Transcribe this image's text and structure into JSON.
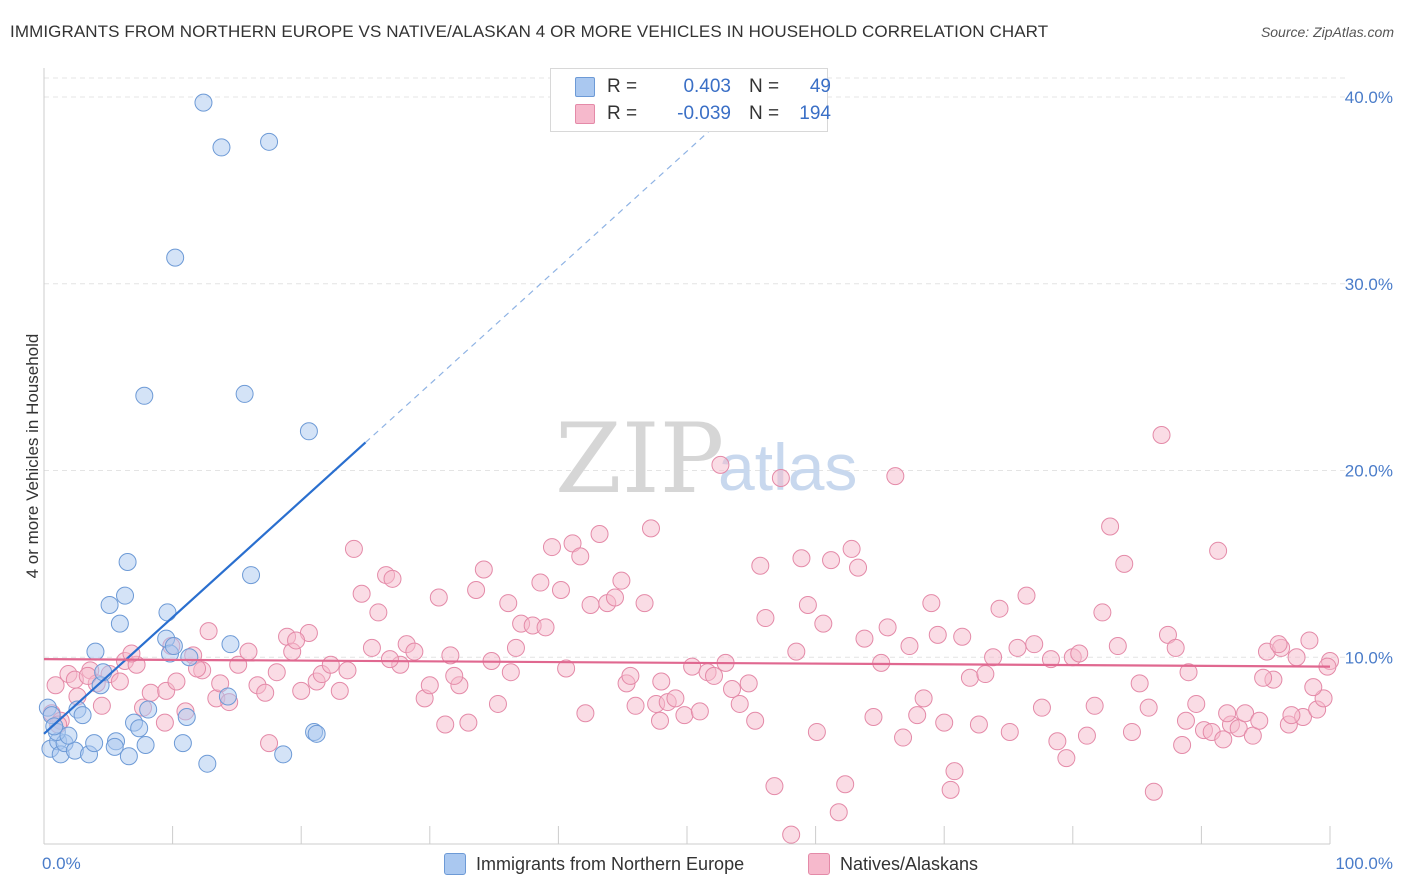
{
  "header": {
    "title": "IMMIGRANTS FROM NORTHERN EUROPE VS NATIVE/ALASKAN 4 OR MORE VEHICLES IN HOUSEHOLD CORRELATION CHART",
    "source": "Source: ZipAtlas.com"
  },
  "legend": {
    "blue": {
      "r_label": "R =",
      "r_value": "0.403",
      "n_label": "N =",
      "n_value": "49"
    },
    "pink": {
      "r_label": "R =",
      "r_value": "-0.039",
      "n_label": "N =",
      "n_value": "194"
    }
  },
  "watermark": {
    "zip": "ZIP",
    "atlas": "atlas"
  },
  "colors": {
    "blue_fill": "#aac8f0",
    "blue_stroke": "#6d9ad6",
    "blue_line": "#2a6fcf",
    "pink_fill": "#f6b9cc",
    "pink_stroke": "#e48aa8",
    "pink_line": "#e06890",
    "tick_text": "#4a7cc9"
  },
  "chart_data": {
    "type": "scatter",
    "title": "IMMIGRANTS FROM NORTHERN EUROPE VS NATIVE/ALASKAN 4 OR MORE VEHICLES IN HOUSEHOLD CORRELATION CHART",
    "xlabel": "",
    "ylabel": "4 or more Vehicles in Household",
    "xlim": [
      0,
      100
    ],
    "ylim": [
      0,
      40
    ],
    "x_tick_labels": [
      "0.0%",
      "100.0%"
    ],
    "y_ticks": [
      10,
      20,
      30,
      40
    ],
    "y_tick_labels": [
      "10.0%",
      "20.0%",
      "30.0%",
      "40.0%"
    ],
    "series": [
      {
        "name": "Immigrants from Northern Europe",
        "color": "blue",
        "trend": {
          "x0": 0.0,
          "y0": 5.9,
          "x1": 25.0,
          "y1": 21.5,
          "dash_to_x": 55.0
        },
        "points": [
          [
            0.3,
            7.3
          ],
          [
            0.5,
            5.1
          ],
          [
            0.6,
            6.9
          ],
          [
            1.1,
            5.5
          ],
          [
            1.3,
            4.8
          ],
          [
            1.6,
            5.4
          ],
          [
            2.4,
            5.0
          ],
          [
            2.6,
            7.2
          ],
          [
            3.0,
            6.9
          ],
          [
            3.5,
            4.8
          ],
          [
            4.0,
            10.3
          ],
          [
            4.4,
            8.5
          ],
          [
            4.6,
            9.2
          ],
          [
            5.1,
            12.8
          ],
          [
            5.6,
            5.5
          ],
          [
            5.9,
            11.8
          ],
          [
            6.3,
            13.3
          ],
          [
            6.5,
            15.1
          ],
          [
            6.6,
            4.7
          ],
          [
            7.0,
            6.5
          ],
          [
            7.4,
            6.2
          ],
          [
            7.8,
            24.0
          ],
          [
            7.9,
            5.3
          ],
          [
            8.1,
            7.2
          ],
          [
            9.5,
            11.0
          ],
          [
            9.6,
            12.4
          ],
          [
            9.8,
            10.2
          ],
          [
            10.1,
            10.6
          ],
          [
            10.2,
            31.4
          ],
          [
            10.8,
            5.4
          ],
          [
            11.1,
            6.8
          ],
          [
            11.3,
            10.0
          ],
          [
            12.4,
            39.7
          ],
          [
            12.7,
            4.3
          ],
          [
            13.8,
            37.3
          ],
          [
            14.3,
            7.9
          ],
          [
            14.5,
            10.7
          ],
          [
            15.6,
            24.1
          ],
          [
            16.1,
            14.4
          ],
          [
            17.5,
            37.6
          ],
          [
            18.6,
            4.8
          ],
          [
            20.6,
            22.1
          ],
          [
            21.0,
            6.0
          ],
          [
            21.2,
            5.9
          ],
          [
            1.0,
            6.0
          ],
          [
            1.9,
            5.8
          ],
          [
            0.8,
            6.3
          ],
          [
            3.9,
            5.4
          ],
          [
            5.5,
            5.2
          ]
        ]
      },
      {
        "name": "Natives/Alaskans",
        "color": "pink",
        "trend": {
          "x0": 0.0,
          "y0": 9.9,
          "x1": 100.0,
          "y1": 9.5
        },
        "points": [
          [
            0.6,
            7.0
          ],
          [
            0.9,
            8.5
          ],
          [
            1.3,
            6.6
          ],
          [
            1.9,
            9.1
          ],
          [
            2.4,
            8.8
          ],
          [
            2.6,
            7.9
          ],
          [
            3.6,
            9.3
          ],
          [
            4.1,
            8.6
          ],
          [
            4.5,
            7.4
          ],
          [
            5.1,
            9.1
          ],
          [
            5.9,
            8.7
          ],
          [
            6.3,
            9.8
          ],
          [
            7.2,
            9.6
          ],
          [
            7.7,
            7.3
          ],
          [
            8.3,
            8.1
          ],
          [
            9.4,
            6.5
          ],
          [
            9.5,
            8.2
          ],
          [
            9.9,
            10.6
          ],
          [
            10.3,
            8.7
          ],
          [
            11.0,
            7.1
          ],
          [
            11.6,
            10.1
          ],
          [
            12.3,
            9.3
          ],
          [
            12.8,
            11.4
          ],
          [
            13.4,
            7.8
          ],
          [
            13.7,
            8.6
          ],
          [
            14.4,
            7.6
          ],
          [
            15.1,
            9.6
          ],
          [
            15.9,
            10.3
          ],
          [
            16.6,
            8.5
          ],
          [
            17.2,
            8.1
          ],
          [
            17.5,
            5.4
          ],
          [
            18.1,
            9.2
          ],
          [
            18.9,
            11.1
          ],
          [
            19.3,
            10.3
          ],
          [
            20.0,
            8.2
          ],
          [
            20.6,
            11.3
          ],
          [
            21.2,
            8.7
          ],
          [
            21.6,
            9.1
          ],
          [
            22.3,
            9.6
          ],
          [
            23.0,
            8.2
          ],
          [
            23.6,
            9.3
          ],
          [
            24.1,
            15.8
          ],
          [
            24.7,
            13.4
          ],
          [
            25.5,
            10.5
          ],
          [
            26.0,
            12.4
          ],
          [
            26.6,
            14.4
          ],
          [
            27.1,
            14.2
          ],
          [
            27.7,
            9.6
          ],
          [
            28.2,
            10.7
          ],
          [
            28.8,
            10.3
          ],
          [
            29.6,
            7.8
          ],
          [
            30.0,
            8.5
          ],
          [
            30.7,
            13.2
          ],
          [
            31.2,
            6.4
          ],
          [
            31.6,
            10.1
          ],
          [
            32.3,
            8.5
          ],
          [
            33.0,
            6.5
          ],
          [
            33.6,
            13.6
          ],
          [
            34.2,
            14.7
          ],
          [
            34.8,
            9.8
          ],
          [
            35.3,
            7.5
          ],
          [
            36.1,
            12.9
          ],
          [
            36.7,
            10.5
          ],
          [
            37.1,
            11.8
          ],
          [
            38.0,
            11.7
          ],
          [
            38.6,
            14.0
          ],
          [
            39.0,
            11.6
          ],
          [
            39.5,
            15.9
          ],
          [
            40.2,
            13.6
          ],
          [
            40.6,
            9.4
          ],
          [
            41.1,
            16.1
          ],
          [
            41.7,
            15.4
          ],
          [
            42.5,
            12.8
          ],
          [
            43.2,
            16.6
          ],
          [
            43.8,
            12.9
          ],
          [
            44.4,
            13.2
          ],
          [
            44.9,
            14.1
          ],
          [
            45.3,
            8.6
          ],
          [
            45.6,
            9.0
          ],
          [
            46.0,
            7.4
          ],
          [
            46.7,
            12.9
          ],
          [
            47.2,
            16.9
          ],
          [
            47.6,
            7.5
          ],
          [
            48.0,
            8.7
          ],
          [
            48.5,
            7.6
          ],
          [
            49.1,
            7.8
          ],
          [
            49.8,
            6.9
          ],
          [
            50.4,
            9.5
          ],
          [
            51.0,
            7.1
          ],
          [
            51.6,
            9.2
          ],
          [
            52.1,
            9.0
          ],
          [
            52.6,
            20.3
          ],
          [
            53.0,
            9.7
          ],
          [
            53.5,
            8.3
          ],
          [
            54.1,
            7.5
          ],
          [
            54.8,
            8.6
          ],
          [
            55.3,
            6.6
          ],
          [
            55.7,
            14.9
          ],
          [
            56.1,
            12.1
          ],
          [
            56.8,
            3.1
          ],
          [
            57.3,
            19.6
          ],
          [
            58.1,
            0.5
          ],
          [
            58.5,
            10.3
          ],
          [
            58.9,
            15.3
          ],
          [
            59.4,
            12.8
          ],
          [
            60.1,
            6.0
          ],
          [
            60.6,
            11.8
          ],
          [
            61.2,
            15.2
          ],
          [
            61.8,
            1.7
          ],
          [
            62.3,
            3.2
          ],
          [
            62.8,
            15.8
          ],
          [
            63.3,
            14.8
          ],
          [
            63.8,
            11.0
          ],
          [
            64.5,
            6.8
          ],
          [
            65.1,
            9.7
          ],
          [
            65.6,
            11.6
          ],
          [
            66.2,
            19.7
          ],
          [
            66.8,
            5.7
          ],
          [
            67.3,
            10.6
          ],
          [
            67.9,
            6.9
          ],
          [
            68.4,
            7.8
          ],
          [
            69.0,
            12.9
          ],
          [
            69.5,
            11.2
          ],
          [
            70.0,
            6.5
          ],
          [
            70.5,
            2.9
          ],
          [
            70.8,
            3.9
          ],
          [
            71.4,
            11.1
          ],
          [
            72.0,
            8.9
          ],
          [
            72.7,
            6.4
          ],
          [
            73.2,
            9.1
          ],
          [
            73.8,
            10.0
          ],
          [
            74.3,
            12.6
          ],
          [
            75.1,
            6.0
          ],
          [
            75.7,
            10.5
          ],
          [
            76.4,
            13.3
          ],
          [
            77.0,
            10.7
          ],
          [
            77.6,
            7.3
          ],
          [
            78.3,
            9.9
          ],
          [
            78.8,
            5.5
          ],
          [
            79.5,
            4.6
          ],
          [
            80.0,
            10.0
          ],
          [
            80.5,
            10.2
          ],
          [
            81.1,
            5.8
          ],
          [
            81.7,
            7.4
          ],
          [
            82.3,
            12.4
          ],
          [
            82.9,
            17.0
          ],
          [
            83.5,
            10.6
          ],
          [
            84.0,
            15.0
          ],
          [
            84.6,
            6.0
          ],
          [
            85.2,
            8.6
          ],
          [
            85.9,
            7.3
          ],
          [
            86.3,
            2.8
          ],
          [
            86.9,
            21.9
          ],
          [
            87.4,
            11.2
          ],
          [
            88.0,
            10.5
          ],
          [
            88.5,
            5.3
          ],
          [
            89.0,
            9.2
          ],
          [
            89.6,
            7.5
          ],
          [
            90.2,
            6.1
          ],
          [
            90.8,
            6.0
          ],
          [
            91.3,
            15.7
          ],
          [
            91.7,
            5.6
          ],
          [
            92.3,
            6.4
          ],
          [
            92.9,
            6.2
          ],
          [
            93.4,
            7.0
          ],
          [
            94.0,
            5.8
          ],
          [
            94.5,
            6.6
          ],
          [
            95.1,
            10.3
          ],
          [
            95.6,
            8.8
          ],
          [
            96.2,
            10.5
          ],
          [
            96.8,
            6.4
          ],
          [
            97.4,
            10.0
          ],
          [
            97.9,
            6.8
          ],
          [
            98.4,
            10.9
          ],
          [
            99.0,
            7.2
          ],
          [
            99.5,
            7.8
          ],
          [
            100.0,
            9.8
          ],
          [
            3.4,
            9.0
          ],
          [
            6.8,
            10.2
          ],
          [
            11.9,
            9.4
          ],
          [
            19.6,
            10.9
          ],
          [
            26.9,
            9.9
          ],
          [
            31.9,
            9.0
          ],
          [
            36.3,
            9.2
          ],
          [
            42.1,
            7.0
          ],
          [
            47.9,
            6.6
          ],
          [
            88.8,
            6.6
          ],
          [
            94.8,
            8.9
          ],
          [
            99.8,
            9.5
          ],
          [
            97.0,
            6.9
          ],
          [
            96.0,
            10.7
          ],
          [
            98.7,
            8.4
          ],
          [
            92.0,
            7.0
          ],
          [
            1.1,
            6.4
          ]
        ]
      }
    ]
  },
  "bottom_legend": {
    "items": [
      {
        "label": "Immigrants from Northern Europe"
      },
      {
        "label": "Natives/Alaskans"
      }
    ]
  }
}
